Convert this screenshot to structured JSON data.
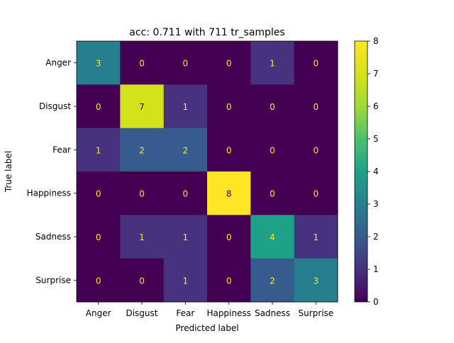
{
  "chart_data": {
    "type": "heatmap",
    "title": "acc: 0.711 with 711 tr_samples",
    "xlabel": "Predicted label",
    "ylabel": "True label",
    "x_categories": [
      "Anger",
      "Disgust",
      "Fear",
      "Happiness",
      "Sadness",
      "Surprise"
    ],
    "y_categories": [
      "Anger",
      "Disgust",
      "Fear",
      "Happiness",
      "Sadness",
      "Surprise"
    ],
    "matrix": [
      [
        3,
        0,
        0,
        0,
        1,
        0
      ],
      [
        0,
        7,
        1,
        0,
        0,
        0
      ],
      [
        1,
        2,
        2,
        0,
        0,
        0
      ],
      [
        0,
        0,
        0,
        8,
        0,
        0
      ],
      [
        0,
        1,
        1,
        0,
        4,
        1
      ],
      [
        0,
        0,
        1,
        0,
        2,
        3
      ]
    ],
    "colorbar": {
      "range": [
        0,
        8
      ],
      "ticks": [
        "0",
        "1",
        "2",
        "3",
        "4",
        "5",
        "6",
        "7",
        "8"
      ],
      "colormap": "viridis"
    },
    "colors": {
      "text_low": "#fde725",
      "text_high": "#440154"
    }
  }
}
